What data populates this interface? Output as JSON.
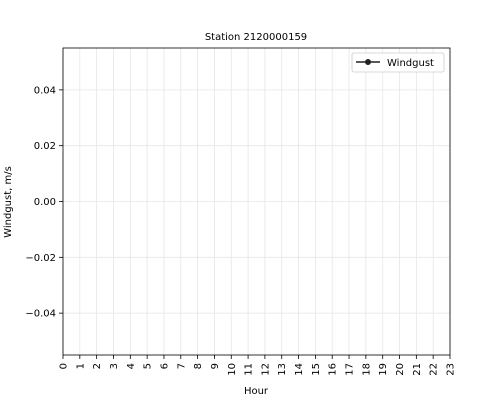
{
  "chart_data": {
    "type": "line",
    "title": "Station 2120000159",
    "xlabel": "Hour",
    "ylabel": "Windgust, m/s",
    "x_ticks": [
      "0",
      "1",
      "2",
      "3",
      "4",
      "5",
      "6",
      "7",
      "8",
      "9",
      "10",
      "11",
      "12",
      "13",
      "14",
      "15",
      "16",
      "17",
      "18",
      "19",
      "20",
      "21",
      "22",
      "23"
    ],
    "y_ticks": [
      {
        "value": 0.04,
        "label": "0.04"
      },
      {
        "value": 0.02,
        "label": "0.02"
      },
      {
        "value": 0.0,
        "label": "0.00"
      },
      {
        "value": -0.02,
        "label": "−0.02"
      },
      {
        "value": -0.04,
        "label": "−0.04"
      }
    ],
    "xlim": [
      0,
      23
    ],
    "ylim": [
      -0.055,
      0.055
    ],
    "grid": true,
    "legend_position": "top-right",
    "series": [
      {
        "name": "Windgust",
        "color": "#222222",
        "marker": "circle",
        "x": [],
        "y": []
      }
    ]
  }
}
